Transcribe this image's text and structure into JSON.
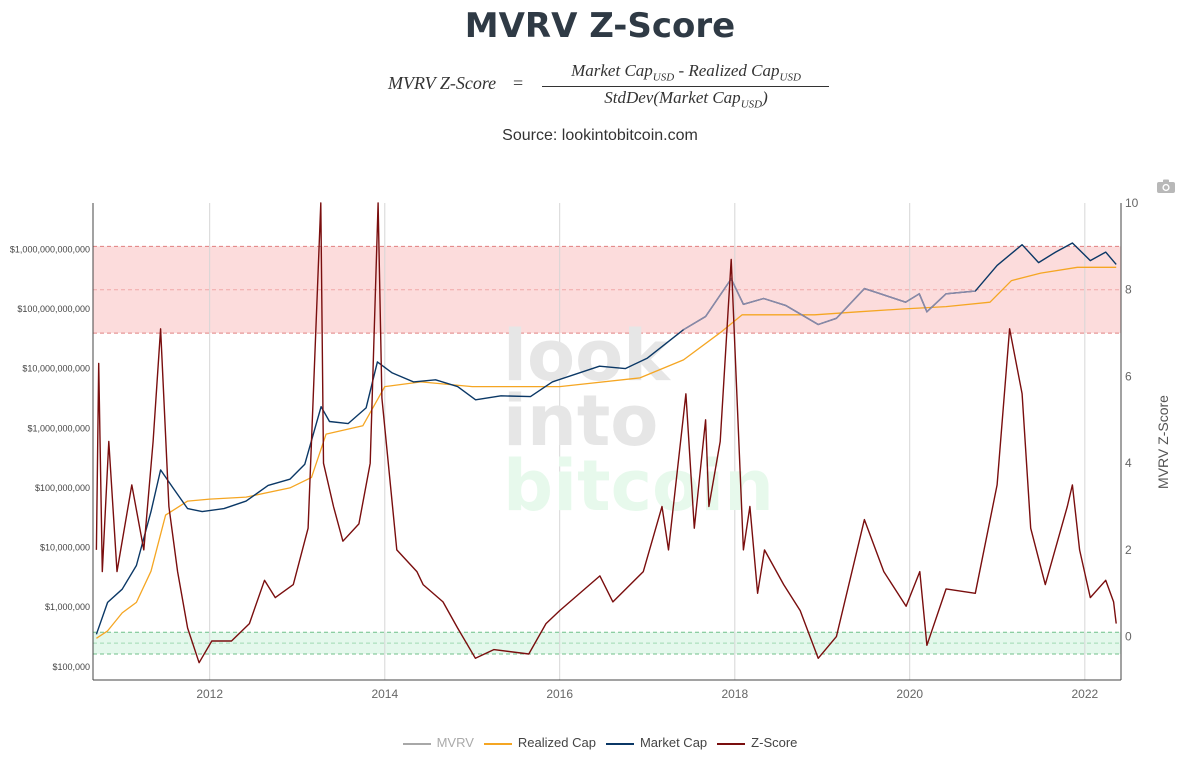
{
  "header": {
    "title": "MVRV Z-Score",
    "formula_lhs": "MVRV Z-Score",
    "formula_eq": "=",
    "formula_num_a": "Market Cap",
    "formula_num_sep": " - ",
    "formula_num_b": "Realized Cap",
    "formula_den_a": "StdDev(Market Cap",
    "formula_den_close": ")",
    "formula_sub": "USD",
    "source": "Source: lookintobitcoin.com"
  },
  "watermark": [
    "look",
    "into",
    "bitcoin"
  ],
  "icons": {
    "toolbar": "camera-icon"
  },
  "chart_data": {
    "type": "line",
    "x_range": [
      "2010-09-01",
      "2022-06-01"
    ],
    "x_ticks": [
      "2012",
      "2014",
      "2016",
      "2018",
      "2020",
      "2022"
    ],
    "y_left": {
      "scale": "log",
      "range": [
        60000,
        6000000000000
      ],
      "ticks": [
        {
          "value": 100000,
          "label": "$100,000"
        },
        {
          "value": 1000000,
          "label": "$1,000,000"
        },
        {
          "value": 10000000,
          "label": "$10,000,000"
        },
        {
          "value": 100000000,
          "label": "$100,000,000"
        },
        {
          "value": 1000000000,
          "label": "$1,000,000,000"
        },
        {
          "value": 10000000000,
          "label": "$10,000,000,000"
        },
        {
          "value": 100000000000,
          "label": "$100,000,000,000"
        },
        {
          "value": 1000000000000,
          "label": "$1,000,000,000,000"
        }
      ]
    },
    "y_right": {
      "title": "MVRV Z-Score",
      "range": [
        -1,
        10
      ],
      "ticks": [
        0,
        2,
        4,
        6,
        8,
        10
      ]
    },
    "bands": [
      {
        "zone": "overvalued",
        "from": 7,
        "to": 9,
        "color": "#fcdcdc",
        "line": "#e08080"
      },
      {
        "zone": "undervalued",
        "from": -0.4,
        "to": 0.1,
        "color": "#e4f8ec",
        "line": "#6fbf8a"
      }
    ],
    "band_midlines": [
      8,
      -0.15
    ],
    "colors": {
      "mvrv": "#a8a8a8",
      "realized_cap": "#f5a623",
      "market_cap": "#0b3866",
      "z_score": "#7a0e0e",
      "market_cap_overlay": "#8a8aa8"
    },
    "series": [
      {
        "name": "Market Cap",
        "axis": "left",
        "points": [
          [
            "2010-09-15",
            350000
          ],
          [
            "2010-11-01",
            1200000
          ],
          [
            "2011-01-01",
            2000000
          ],
          [
            "2011-03-01",
            5000000
          ],
          [
            "2011-05-01",
            40000000
          ],
          [
            "2011-06-10",
            200000000
          ],
          [
            "2011-08-01",
            100000000
          ],
          [
            "2011-10-01",
            45000000
          ],
          [
            "2011-12-01",
            40000000
          ],
          [
            "2012-03-01",
            45000000
          ],
          [
            "2012-06-01",
            60000000
          ],
          [
            "2012-09-01",
            110000000
          ],
          [
            "2012-12-01",
            140000000
          ],
          [
            "2013-02-01",
            250000000
          ],
          [
            "2013-04-10",
            2300000000
          ],
          [
            "2013-05-15",
            1300000000
          ],
          [
            "2013-08-01",
            1200000000
          ],
          [
            "2013-10-15",
            2200000000
          ],
          [
            "2013-12-01",
            13000000000
          ],
          [
            "2014-02-01",
            8500000000
          ],
          [
            "2014-05-01",
            6000000000
          ],
          [
            "2014-08-01",
            6500000000
          ],
          [
            "2014-11-01",
            5000000000
          ],
          [
            "2015-01-15",
            3000000000
          ],
          [
            "2015-05-01",
            3500000000
          ],
          [
            "2015-09-01",
            3400000000
          ],
          [
            "2015-12-01",
            6000000000
          ],
          [
            "2016-06-15",
            11000000000
          ],
          [
            "2016-10-01",
            10000000000
          ],
          [
            "2017-01-01",
            15000000000
          ],
          [
            "2017-06-01",
            45000000000
          ],
          [
            "2017-09-01",
            75000000000
          ],
          [
            "2017-12-17",
            320000000000
          ],
          [
            "2018-02-06",
            120000000000
          ],
          [
            "2018-05-01",
            150000000000
          ],
          [
            "2018-08-01",
            115000000000
          ],
          [
            "2018-12-15",
            55000000000
          ],
          [
            "2019-03-01",
            70000000000
          ],
          [
            "2019-06-26",
            220000000000
          ],
          [
            "2019-09-01",
            180000000000
          ],
          [
            "2019-12-15",
            130000000000
          ],
          [
            "2020-02-10",
            180000000000
          ],
          [
            "2020-03-13",
            90000000000
          ],
          [
            "2020-06-01",
            180000000000
          ],
          [
            "2020-10-01",
            200000000000
          ],
          [
            "2020-12-31",
            540000000000
          ],
          [
            "2021-04-14",
            1200000000000
          ],
          [
            "2021-06-22",
            600000000000
          ],
          [
            "2021-09-01",
            900000000000
          ],
          [
            "2021-11-10",
            1280000000000
          ],
          [
            "2022-01-24",
            650000000000
          ],
          [
            "2022-03-29",
            900000000000
          ],
          [
            "2022-05-12",
            560000000000
          ]
        ]
      },
      {
        "name": "Realized Cap",
        "axis": "left",
        "points": [
          [
            "2010-09-15",
            300000
          ],
          [
            "2010-11-01",
            400000
          ],
          [
            "2011-01-01",
            800000
          ],
          [
            "2011-03-01",
            1200000
          ],
          [
            "2011-05-01",
            4000000
          ],
          [
            "2011-07-01",
            35000000
          ],
          [
            "2011-10-01",
            60000000
          ],
          [
            "2012-01-01",
            65000000
          ],
          [
            "2012-06-01",
            70000000
          ],
          [
            "2012-12-01",
            100000000
          ],
          [
            "2013-03-01",
            150000000
          ],
          [
            "2013-05-01",
            800000000
          ],
          [
            "2013-10-01",
            1100000000
          ],
          [
            "2014-01-01",
            5000000000
          ],
          [
            "2014-06-01",
            6000000000
          ],
          [
            "2015-01-01",
            5000000000
          ],
          [
            "2016-01-01",
            5000000000
          ],
          [
            "2016-12-01",
            7000000000
          ],
          [
            "2017-06-01",
            14000000000
          ],
          [
            "2017-11-01",
            40000000000
          ],
          [
            "2018-02-01",
            80000000000
          ],
          [
            "2018-12-01",
            80000000000
          ],
          [
            "2019-06-01",
            90000000000
          ],
          [
            "2019-12-01",
            100000000000
          ],
          [
            "2020-06-01",
            110000000000
          ],
          [
            "2020-12-01",
            130000000000
          ],
          [
            "2021-03-01",
            300000000000
          ],
          [
            "2021-07-01",
            400000000000
          ],
          [
            "2021-12-01",
            500000000000
          ],
          [
            "2022-05-12",
            500000000000
          ]
        ]
      },
      {
        "name": "Z-Score",
        "axis": "right",
        "points": [
          [
            "2010-09-15",
            2.0
          ],
          [
            "2010-09-25",
            6.3
          ],
          [
            "2010-10-10",
            1.5
          ],
          [
            "2010-11-06",
            4.5
          ],
          [
            "2010-12-10",
            1.5
          ],
          [
            "2011-02-10",
            3.5
          ],
          [
            "2011-04-01",
            2.0
          ],
          [
            "2011-05-10",
            4.5
          ],
          [
            "2011-06-10",
            7.1
          ],
          [
            "2011-07-15",
            3.0
          ],
          [
            "2011-08-20",
            1.5
          ],
          [
            "2011-10-01",
            0.2
          ],
          [
            "2011-11-18",
            -0.6
          ],
          [
            "2012-01-10",
            -0.1
          ],
          [
            "2012-04-01",
            -0.1
          ],
          [
            "2012-06-15",
            0.3
          ],
          [
            "2012-08-17",
            1.3
          ],
          [
            "2012-10-01",
            0.9
          ],
          [
            "2012-12-15",
            1.2
          ],
          [
            "2013-02-15",
            2.5
          ],
          [
            "2013-04-09",
            10.0
          ],
          [
            "2013-04-20",
            4.0
          ],
          [
            "2013-06-01",
            3.0
          ],
          [
            "2013-07-10",
            2.2
          ],
          [
            "2013-09-15",
            2.6
          ],
          [
            "2013-11-01",
            4.0
          ],
          [
            "2013-12-04",
            10.0
          ],
          [
            "2013-12-20",
            5.5
          ],
          [
            "2014-02-20",
            2.0
          ],
          [
            "2014-05-15",
            1.5
          ],
          [
            "2014-06-10",
            1.2
          ],
          [
            "2014-09-01",
            0.8
          ],
          [
            "2014-11-01",
            0.2
          ],
          [
            "2015-01-14",
            -0.5
          ],
          [
            "2015-04-01",
            -0.3
          ],
          [
            "2015-08-25",
            -0.4
          ],
          [
            "2015-11-05",
            0.3
          ],
          [
            "2016-01-01",
            0.6
          ],
          [
            "2016-06-17",
            1.4
          ],
          [
            "2016-08-10",
            0.8
          ],
          [
            "2016-12-15",
            1.5
          ],
          [
            "2017-03-03",
            3.0
          ],
          [
            "2017-03-30",
            2.0
          ],
          [
            "2017-06-11",
            5.6
          ],
          [
            "2017-07-16",
            2.5
          ],
          [
            "2017-09-01",
            5.0
          ],
          [
            "2017-09-15",
            3.0
          ],
          [
            "2017-11-01",
            4.5
          ],
          [
            "2017-12-17",
            8.7
          ],
          [
            "2018-02-06",
            2.0
          ],
          [
            "2018-03-05",
            3.0
          ],
          [
            "2018-04-06",
            1.0
          ],
          [
            "2018-05-05",
            2.0
          ],
          [
            "2018-07-24",
            1.2
          ],
          [
            "2018-10-01",
            0.6
          ],
          [
            "2018-12-15",
            -0.5
          ],
          [
            "2019-03-01",
            0.0
          ],
          [
            "2019-06-26",
            2.7
          ],
          [
            "2019-09-15",
            1.5
          ],
          [
            "2019-12-17",
            0.7
          ],
          [
            "2020-02-12",
            1.5
          ],
          [
            "2020-03-13",
            -0.2
          ],
          [
            "2020-06-01",
            1.1
          ],
          [
            "2020-10-01",
            1.0
          ],
          [
            "2020-12-31",
            3.5
          ],
          [
            "2021-02-21",
            7.1
          ],
          [
            "2021-04-14",
            5.6
          ],
          [
            "2021-05-20",
            2.5
          ],
          [
            "2021-07-20",
            1.2
          ],
          [
            "2021-10-20",
            3.0
          ],
          [
            "2021-11-10",
            3.5
          ],
          [
            "2021-12-10",
            2.0
          ],
          [
            "2022-01-24",
            0.9
          ],
          [
            "2022-03-29",
            1.3
          ],
          [
            "2022-05-01",
            0.8
          ],
          [
            "2022-05-12",
            0.3
          ]
        ]
      }
    ],
    "legend": {
      "placement": "bottom-center",
      "items": [
        {
          "name": "MVRV",
          "color": "#a8a8a8",
          "hidden": true
        },
        {
          "name": "Realized Cap",
          "color": "#f5a623"
        },
        {
          "name": "Market Cap",
          "color": "#0b3866"
        },
        {
          "name": "Z-Score",
          "color": "#7a0e0e"
        }
      ]
    }
  }
}
